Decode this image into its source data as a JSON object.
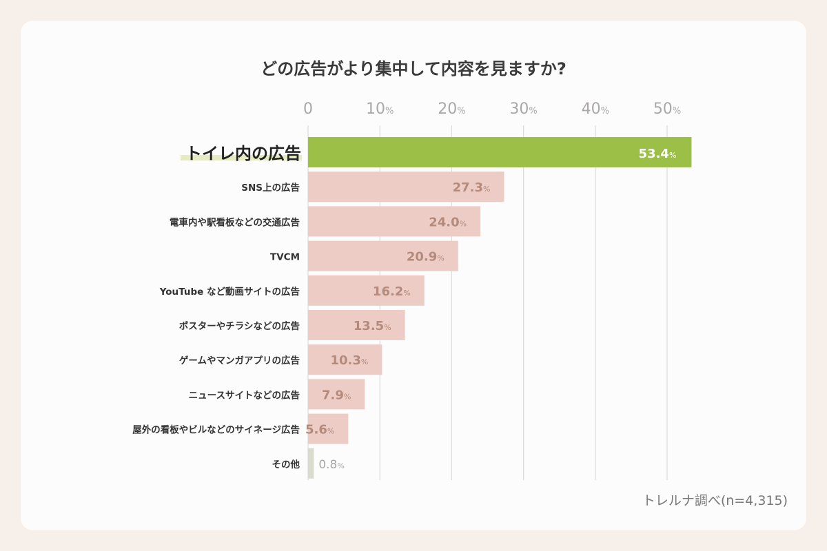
{
  "chart_data": {
    "type": "bar",
    "orientation": "horizontal",
    "title": "どの広告がより集中して内容を見ますか?",
    "categories": [
      "トイレ内の広告",
      "SNS上の広告",
      "電車内や駅看板などの交通広告",
      "TVCM",
      "YouTube など動画サイトの広告",
      "ポスターやチラシなどの広告",
      "ゲームやマンガアプリの広告",
      "ニュースサイトなどの広告",
      "屋外の看板やビルなどのサイネージ広告",
      "その他"
    ],
    "values": [
      53.4,
      27.3,
      24.0,
      20.9,
      16.2,
      13.5,
      10.3,
      7.9,
      5.6,
      0.8
    ],
    "value_labels": [
      "53.4",
      "27.3",
      "24.0",
      "20.9",
      "16.2",
      "13.5",
      "10.3",
      "7.9",
      "5.6",
      "0.8"
    ],
    "unit": "%",
    "xticks": [
      0,
      10,
      20,
      30,
      40,
      50
    ],
    "xtick_labels": [
      "0",
      "10",
      "20",
      "30",
      "40",
      "50"
    ],
    "xlim": [
      0,
      55
    ],
    "grid": true,
    "axis_position": "top",
    "source": "トレルナ調べ(n=4,315)",
    "colors": {
      "highlight": "#9bbf47",
      "bars": "#ecccc4",
      "other": "#d9dccd",
      "value_text": "#b48a7c",
      "tick_text": "#aaa7ab",
      "label_text": "#333333",
      "underline": "#e6ebc4"
    }
  }
}
